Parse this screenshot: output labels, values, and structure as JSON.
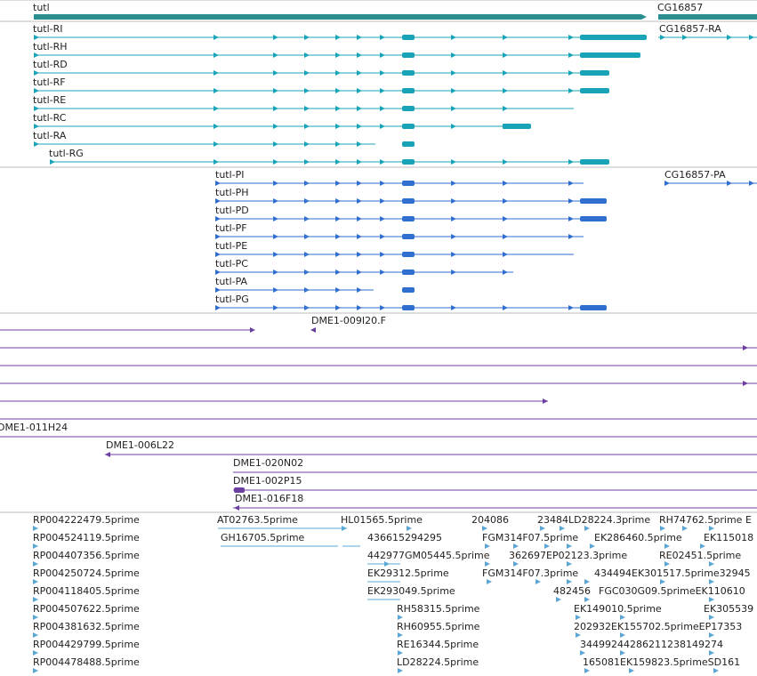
{
  "colors": {
    "gene": "#2b8f8f",
    "transcript": "#18a3b8",
    "protein": "#2f6fd0",
    "clone": "#6a3fa0",
    "est": "#5aa8d8",
    "divider": "#bdbdbd"
  },
  "gene_track": {
    "genes": [
      {
        "label": "tutl",
        "start": 38,
        "end": 727
      },
      {
        "label": "CG16857",
        "start": 740,
        "end": 851
      }
    ]
  },
  "transcript_track": {
    "rows": [
      {
        "label": "tutl-RI",
        "start": 38,
        "end": 727,
        "thick_start": 652,
        "thick_end": 727
      },
      {
        "label": "tutl-RH",
        "start": 38,
        "end": 720,
        "thick_start": 652,
        "thick_end": 720
      },
      {
        "label": "tutl-RD",
        "start": 38,
        "end": 685,
        "thick_start": 652,
        "thick_end": 685
      },
      {
        "label": "tutl-RF",
        "start": 38,
        "end": 685,
        "thick_start": 652,
        "thick_end": 685
      },
      {
        "label": "tutl-RE",
        "start": 38,
        "end": 645
      },
      {
        "label": "tutl-RC",
        "start": 38,
        "end": 597,
        "thick_start": 565,
        "thick_end": 597
      },
      {
        "label": "tutl-RA",
        "start": 38,
        "end": 422
      },
      {
        "label": "tutl-RG",
        "start": 56,
        "end": 685,
        "thick_start": 652,
        "thick_end": 685
      }
    ],
    "extra": [
      {
        "label": "CG16857-RA",
        "start": 740,
        "end": 851
      }
    ]
  },
  "protein_track": {
    "rows": [
      {
        "label": "tutl-PI",
        "start": 242,
        "end": 656
      },
      {
        "label": "tutl-PH",
        "start": 242,
        "end": 682,
        "thick_start": 652,
        "thick_end": 682
      },
      {
        "label": "tutl-PD",
        "start": 242,
        "end": 682,
        "thick_start": 652,
        "thick_end": 682
      },
      {
        "label": "tutl-PF",
        "start": 242,
        "end": 656
      },
      {
        "label": "tutl-PE",
        "start": 242,
        "end": 645
      },
      {
        "label": "tutl-PC",
        "start": 242,
        "end": 577
      },
      {
        "label": "tutl-PA",
        "start": 242,
        "end": 420
      },
      {
        "label": "tutl-PG",
        "start": 242,
        "end": 682,
        "thick_start": 652,
        "thick_end": 682
      }
    ],
    "extra": [
      {
        "label": "CG16857-PA",
        "start": 747,
        "end": 851
      }
    ]
  },
  "clone_track": {
    "labels": [
      "DME1-009I20.F",
      "DME1-011H24",
      "DME1-006L22",
      "DME1-020N02",
      "DME1-002P15",
      "DME1-016F18"
    ]
  },
  "est_track": {
    "labels": [
      "RP004222479.5prime",
      "RP004524119.5prime",
      "RP004407356.5prime",
      "RP004250724.5prime",
      "RP004118405.5prime",
      "RP004507622.5prime",
      "RP004381632.5prime",
      "RP004429799.5prime",
      "RP004478488.5prime",
      "AT02763.5prime",
      "GH16705.5prime",
      "HL01565.5prime",
      "436615294295",
      "442977GM05445.5prime",
      "EK29312.5prime",
      "EK293049.5prime",
      "RH58315.5prime",
      "RH60955.5prime",
      "RE16344.5prime",
      "LD28224.5prime",
      "204086",
      "23484LD28224.3prime",
      "RH74762.5prime E",
      "FGM314F07.5prime",
      "EK286460.5prime",
      "EK115018",
      "362697EP02123.3prime",
      "RE02451.5prime",
      "FGM314F07.3prime",
      "434494EK301517.5prime32945",
      "482456",
      "FGC030G09.5primeEK110610",
      "EK149010.5prime",
      "EK305539",
      "202932EK155702.5primeEP17353",
      "34499244286211238149274",
      "165081EK159823.5primeSD161"
    ]
  }
}
